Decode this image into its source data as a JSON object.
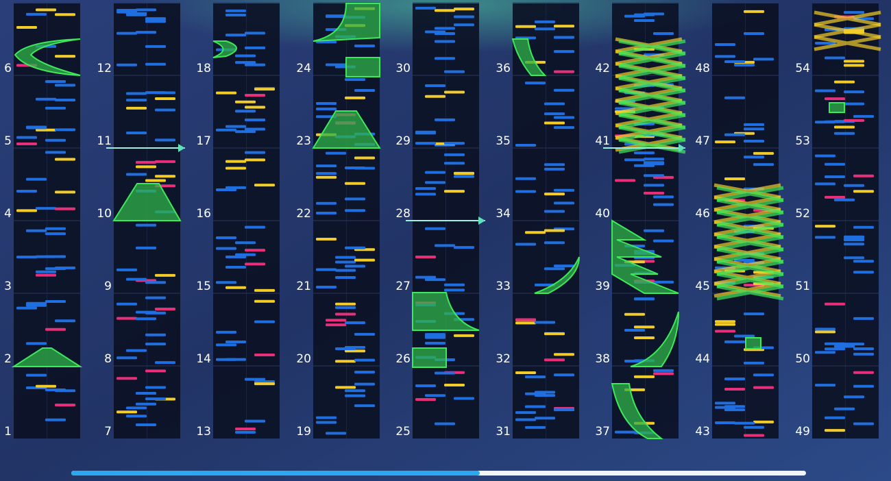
{
  "measure_labels": [
    1,
    2,
    3,
    4,
    5,
    6,
    7,
    8,
    9,
    10,
    11,
    12,
    13,
    14,
    15,
    16,
    17,
    18,
    19,
    20,
    21,
    22,
    23,
    24,
    25,
    26,
    27,
    28,
    29,
    30,
    31,
    32,
    33,
    34,
    35,
    36,
    37,
    38,
    39,
    40,
    41,
    42,
    43,
    44,
    45,
    46,
    47,
    48,
    49,
    50,
    51,
    52,
    53,
    54
  ]
}
